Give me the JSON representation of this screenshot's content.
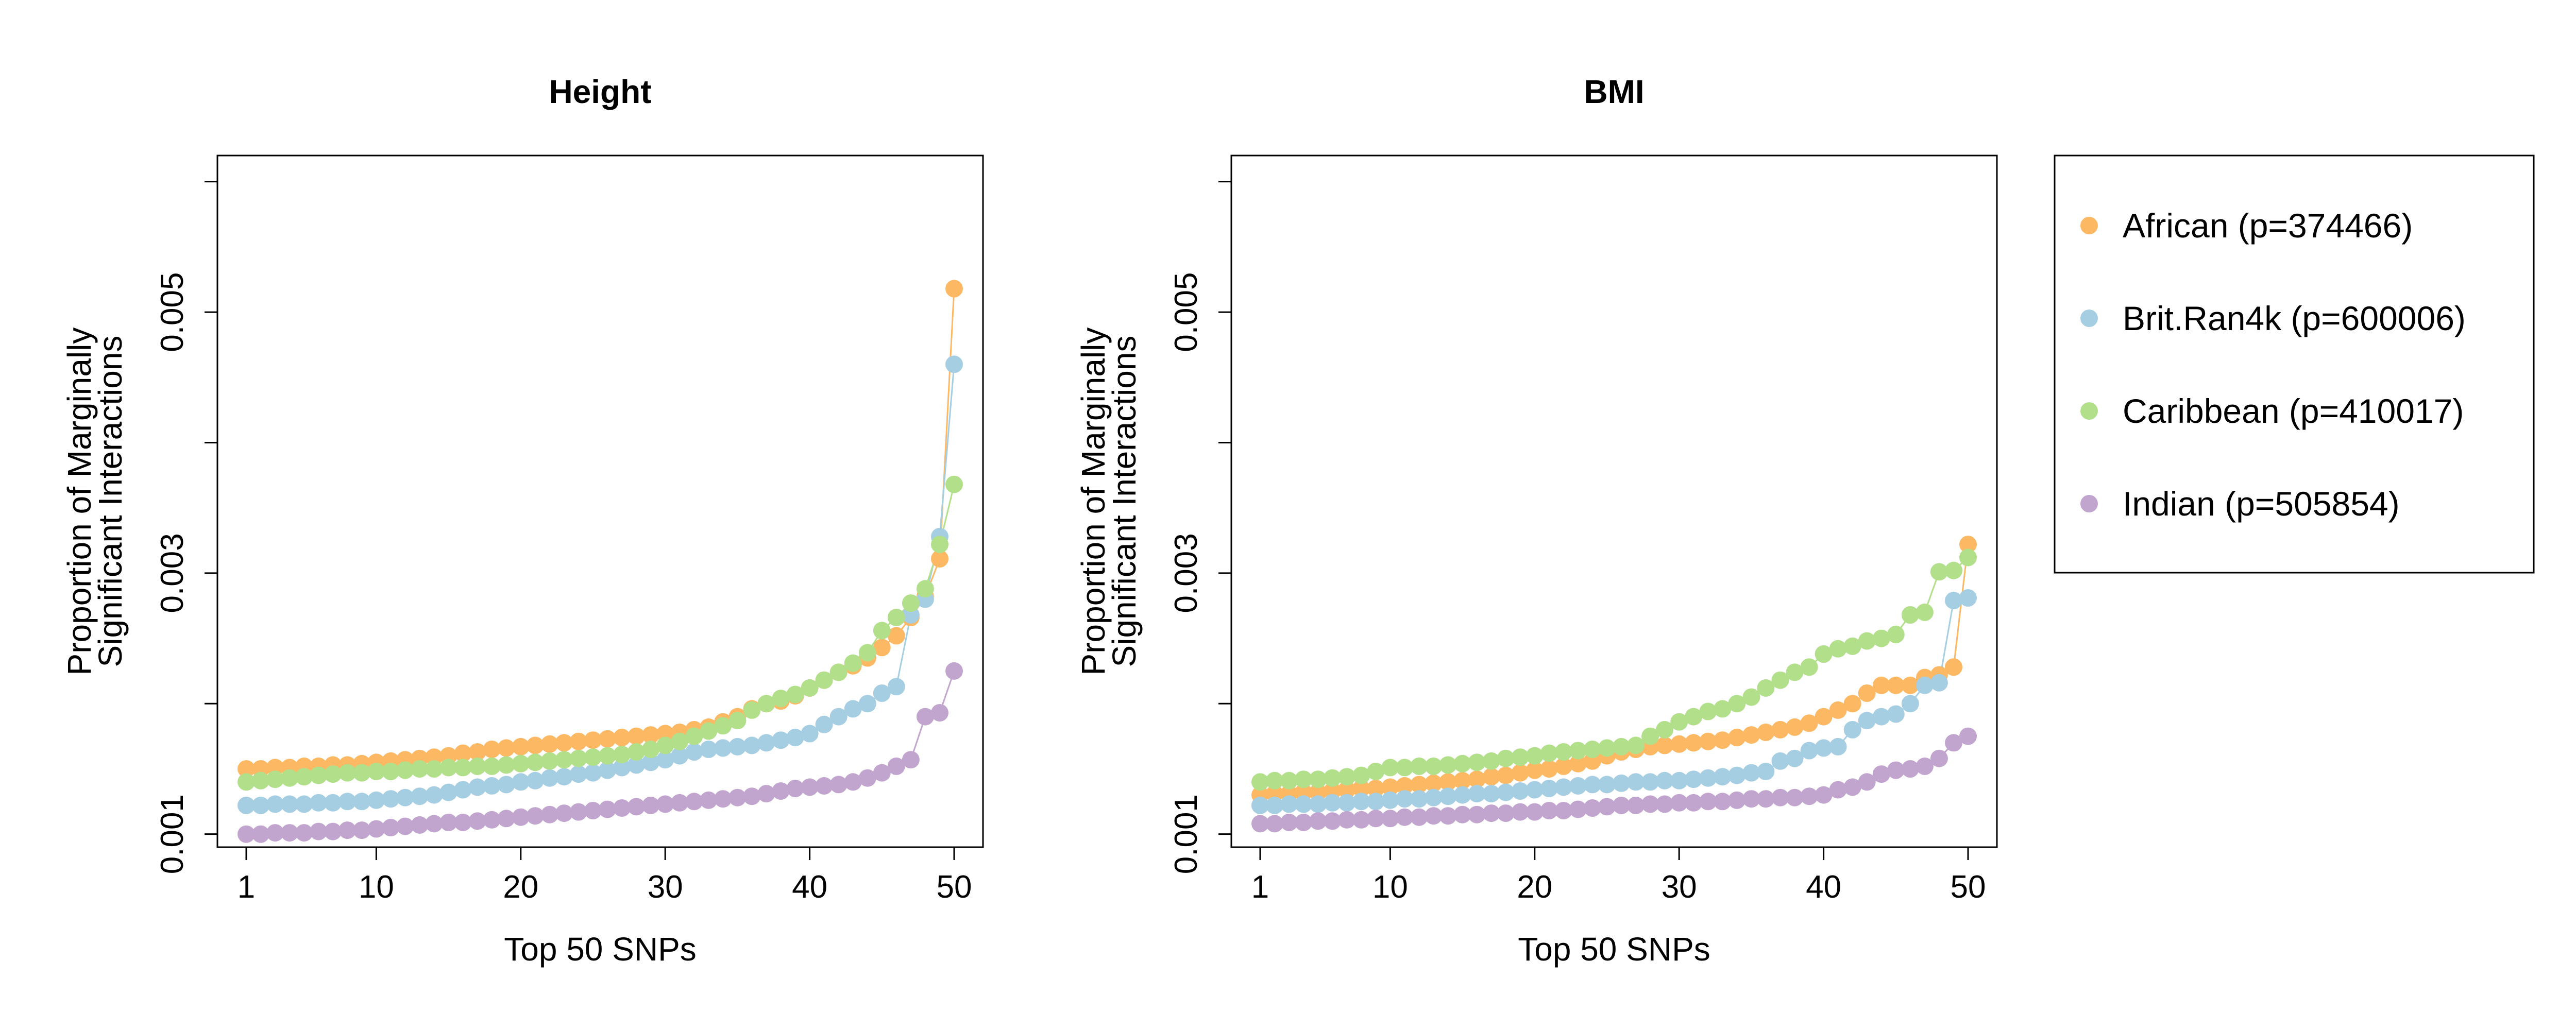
{
  "chart_data": [
    {
      "type": "scatter",
      "title": "Height",
      "xlabel": "Top 50 SNPs",
      "ylabel": [
        "Proportion of Marginally",
        "Significant Interactions"
      ],
      "xlim": [
        1,
        50
      ],
      "ylim": [
        0.0009,
        0.0062
      ],
      "x_ticks": [
        1,
        10,
        20,
        30,
        40,
        50
      ],
      "x_tick_labels": [
        "1",
        "10",
        "20",
        "30",
        "40",
        "50"
      ],
      "y_ticks": [
        0.001,
        0.002,
        0.003,
        0.004,
        0.005,
        0.006
      ],
      "y_tick_labels": [
        "0.001",
        "",
        "0.003",
        "",
        "0.005",
        ""
      ],
      "grid": false,
      "x": [
        1,
        2,
        3,
        4,
        5,
        6,
        7,
        8,
        9,
        10,
        11,
        12,
        13,
        14,
        15,
        16,
        17,
        18,
        19,
        20,
        21,
        22,
        23,
        24,
        25,
        26,
        27,
        28,
        29,
        30,
        31,
        32,
        33,
        34,
        35,
        36,
        37,
        38,
        39,
        40,
        41,
        42,
        43,
        44,
        45,
        46,
        47,
        48,
        49,
        50
      ],
      "series": [
        {
          "name": "African (p=374466)",
          "color": "#FDB863",
          "values": [
            0.0015,
            0.0015,
            0.00151,
            0.00151,
            0.00152,
            0.00152,
            0.00153,
            0.00153,
            0.00154,
            0.00155,
            0.00156,
            0.00157,
            0.00158,
            0.00159,
            0.0016,
            0.00162,
            0.00163,
            0.00165,
            0.00166,
            0.00167,
            0.00168,
            0.00169,
            0.0017,
            0.00171,
            0.00172,
            0.00173,
            0.00174,
            0.00175,
            0.00176,
            0.00177,
            0.00178,
            0.0018,
            0.00182,
            0.00186,
            0.0019,
            0.00196,
            0.002,
            0.00202,
            0.00206,
            0.00212,
            0.00218,
            0.00224,
            0.00229,
            0.00235,
            0.00243,
            0.00252,
            0.00266,
            0.00282,
            0.00311,
            0.00518
          ]
        },
        {
          "name": "Brit.Ran4k (p=600006)",
          "color": "#A6CEE3",
          "values": [
            0.00122,
            0.00122,
            0.00123,
            0.00123,
            0.00123,
            0.00124,
            0.00124,
            0.00125,
            0.00125,
            0.00126,
            0.00127,
            0.00128,
            0.00129,
            0.0013,
            0.00132,
            0.00134,
            0.00136,
            0.00137,
            0.00138,
            0.0014,
            0.00141,
            0.00143,
            0.00144,
            0.00146,
            0.00147,
            0.00149,
            0.00151,
            0.00153,
            0.00155,
            0.00157,
            0.0016,
            0.00163,
            0.00165,
            0.00166,
            0.00167,
            0.00168,
            0.0017,
            0.00172,
            0.00174,
            0.00177,
            0.00184,
            0.0019,
            0.00196,
            0.002,
            0.00208,
            0.00213,
            0.00268,
            0.0028,
            0.00328,
            0.0046
          ]
        },
        {
          "name": "Caribbean (p=410017)",
          "color": "#B2DF8A",
          "values": [
            0.0014,
            0.00141,
            0.00142,
            0.00143,
            0.00144,
            0.00145,
            0.00146,
            0.00147,
            0.00147,
            0.00148,
            0.00148,
            0.00149,
            0.0015,
            0.0015,
            0.00151,
            0.00151,
            0.00152,
            0.00152,
            0.00153,
            0.00154,
            0.00155,
            0.00156,
            0.00157,
            0.00158,
            0.00159,
            0.0016,
            0.00161,
            0.00163,
            0.00165,
            0.00168,
            0.00171,
            0.00175,
            0.00179,
            0.00183,
            0.00187,
            0.00195,
            0.002,
            0.00204,
            0.00207,
            0.00212,
            0.00218,
            0.00224,
            0.00231,
            0.00239,
            0.00256,
            0.00266,
            0.00277,
            0.00288,
            0.00322,
            0.00368
          ]
        },
        {
          "name": "Indian (p=505854)",
          "color": "#C2A5CF",
          "values": [
            0.001,
            0.001,
            0.00101,
            0.00101,
            0.00101,
            0.00102,
            0.00102,
            0.00103,
            0.00103,
            0.00104,
            0.00105,
            0.00106,
            0.00107,
            0.00108,
            0.00109,
            0.00109,
            0.0011,
            0.00111,
            0.00112,
            0.00113,
            0.00114,
            0.00115,
            0.00116,
            0.00117,
            0.00118,
            0.00119,
            0.0012,
            0.00121,
            0.00122,
            0.00123,
            0.00124,
            0.00125,
            0.00126,
            0.00127,
            0.00128,
            0.00129,
            0.00131,
            0.00133,
            0.00135,
            0.00136,
            0.00137,
            0.00138,
            0.0014,
            0.00143,
            0.00147,
            0.00152,
            0.00157,
            0.0019,
            0.00193,
            0.00225
          ]
        }
      ]
    },
    {
      "type": "scatter",
      "title": "BMI",
      "xlabel": "Top 50 SNPs",
      "ylabel": [
        "Proportion of Marginally",
        "Significant Interactions"
      ],
      "xlim": [
        1,
        50
      ],
      "ylim": [
        0.0009,
        0.0062
      ],
      "x_ticks": [
        1,
        10,
        20,
        30,
        40,
        50
      ],
      "x_tick_labels": [
        "1",
        "10",
        "20",
        "30",
        "40",
        "50"
      ],
      "y_ticks": [
        0.001,
        0.002,
        0.003,
        0.004,
        0.005,
        0.006
      ],
      "y_tick_labels": [
        "0.001",
        "",
        "0.003",
        "",
        "0.005",
        ""
      ],
      "grid": false,
      "x": [
        1,
        2,
        3,
        4,
        5,
        6,
        7,
        8,
        9,
        10,
        11,
        12,
        13,
        14,
        15,
        16,
        17,
        18,
        19,
        20,
        21,
        22,
        23,
        24,
        25,
        26,
        27,
        28,
        29,
        30,
        31,
        32,
        33,
        34,
        35,
        36,
        37,
        38,
        39,
        40,
        41,
        42,
        43,
        44,
        45,
        46,
        47,
        48,
        49,
        50
      ],
      "series": [
        {
          "name": "African (p=374466)",
          "color": "#FDB863",
          "values": [
            0.0013,
            0.00131,
            0.00131,
            0.00132,
            0.00132,
            0.00133,
            0.00134,
            0.00135,
            0.00135,
            0.00136,
            0.00137,
            0.00138,
            0.00139,
            0.0014,
            0.00141,
            0.00142,
            0.00144,
            0.00145,
            0.00147,
            0.00149,
            0.0015,
            0.00152,
            0.00154,
            0.00156,
            0.0016,
            0.00163,
            0.00165,
            0.00167,
            0.00168,
            0.00169,
            0.0017,
            0.00171,
            0.00172,
            0.00174,
            0.00176,
            0.00178,
            0.0018,
            0.00182,
            0.00185,
            0.0019,
            0.00195,
            0.002,
            0.00208,
            0.00214,
            0.00214,
            0.00214,
            0.0022,
            0.00222,
            0.00228,
            0.00322
          ]
        },
        {
          "name": "Brit.Ran4k (p=600006)",
          "color": "#A6CEE3",
          "values": [
            0.00122,
            0.00122,
            0.00123,
            0.00123,
            0.00123,
            0.00124,
            0.00124,
            0.00125,
            0.00125,
            0.00126,
            0.00127,
            0.00127,
            0.00128,
            0.00129,
            0.0013,
            0.00131,
            0.00131,
            0.00132,
            0.00133,
            0.00134,
            0.00135,
            0.00136,
            0.00137,
            0.00138,
            0.00138,
            0.00139,
            0.0014,
            0.0014,
            0.00141,
            0.00141,
            0.00142,
            0.00143,
            0.00144,
            0.00145,
            0.00147,
            0.00148,
            0.00156,
            0.00158,
            0.00164,
            0.00166,
            0.00167,
            0.0018,
            0.00187,
            0.0019,
            0.00192,
            0.002,
            0.00214,
            0.00216,
            0.00279,
            0.00281
          ]
        },
        {
          "name": "Caribbean (p=410017)",
          "color": "#B2DF8A",
          "values": [
            0.0014,
            0.00141,
            0.00141,
            0.00142,
            0.00142,
            0.00143,
            0.00144,
            0.00145,
            0.00148,
            0.00151,
            0.00151,
            0.00152,
            0.00152,
            0.00153,
            0.00154,
            0.00155,
            0.00156,
            0.00158,
            0.00159,
            0.0016,
            0.00162,
            0.00163,
            0.00164,
            0.00165,
            0.00166,
            0.00167,
            0.00168,
            0.00175,
            0.0018,
            0.00186,
            0.0019,
            0.00194,
            0.00196,
            0.002,
            0.00205,
            0.00212,
            0.00218,
            0.00224,
            0.00228,
            0.00238,
            0.00242,
            0.00244,
            0.00248,
            0.0025,
            0.00253,
            0.00268,
            0.0027,
            0.00301,
            0.00302,
            0.00312
          ]
        },
        {
          "name": "Indian (p=505854)",
          "color": "#C2A5CF",
          "values": [
            0.00108,
            0.00108,
            0.00109,
            0.00109,
            0.0011,
            0.0011,
            0.00111,
            0.00111,
            0.00112,
            0.00112,
            0.00113,
            0.00113,
            0.00114,
            0.00114,
            0.00115,
            0.00115,
            0.00116,
            0.00116,
            0.00117,
            0.00117,
            0.00118,
            0.00118,
            0.00119,
            0.0012,
            0.00121,
            0.00122,
            0.00122,
            0.00123,
            0.00123,
            0.00124,
            0.00124,
            0.00125,
            0.00125,
            0.00126,
            0.00127,
            0.00127,
            0.00128,
            0.00128,
            0.00129,
            0.0013,
            0.00134,
            0.00136,
            0.0014,
            0.00146,
            0.00149,
            0.0015,
            0.00152,
            0.00158,
            0.0017,
            0.00175
          ]
        }
      ]
    }
  ],
  "legend": {
    "placement": "right",
    "entries": [
      {
        "label": "African (p=374466)",
        "color": "#FDB863"
      },
      {
        "label": "Brit.Ran4k (p=600006)",
        "color": "#A6CEE3"
      },
      {
        "label": "Caribbean (p=410017)",
        "color": "#B2DF8A"
      },
      {
        "label": "Indian (p=505854)",
        "color": "#C2A5CF"
      }
    ]
  }
}
